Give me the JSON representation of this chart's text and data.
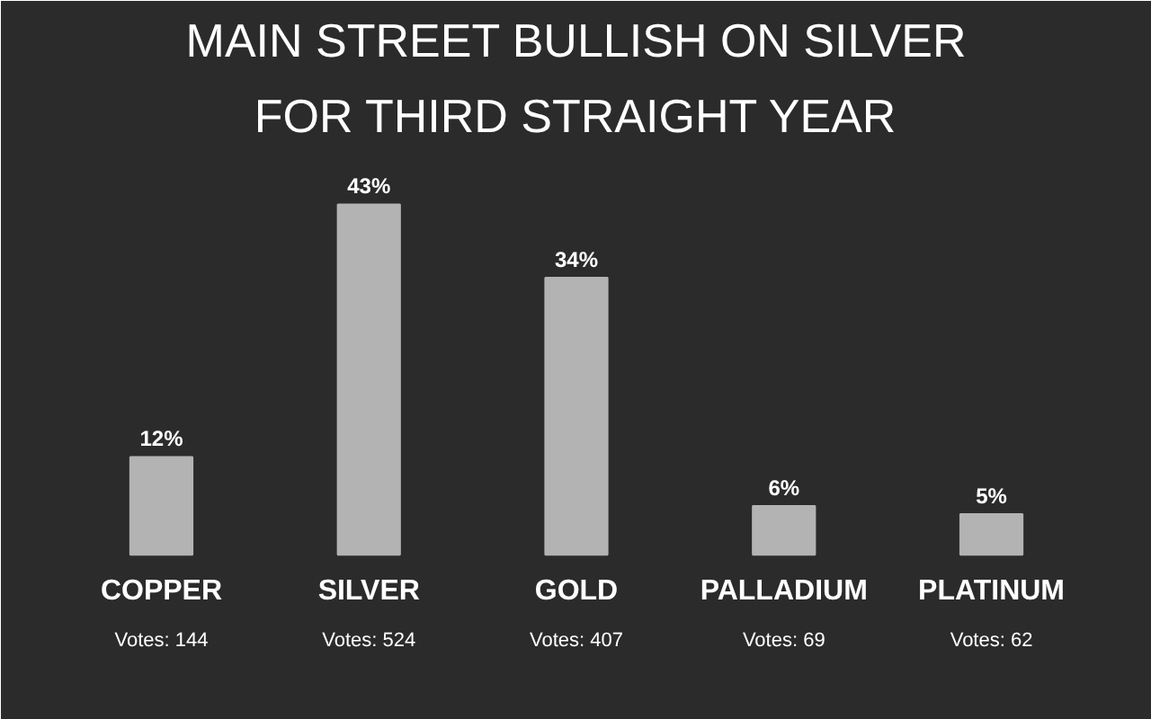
{
  "chart_data": {
    "type": "bar",
    "title": "MAIN STREET BULLISH ON SILVER",
    "subtitle": "FOR THIRD STRAIGHT YEAR",
    "categories": [
      "COPPER",
      "SILVER",
      "GOLD",
      "PALLADIUM",
      "PLATINUM"
    ],
    "values": [
      12,
      43,
      34,
      6,
      5
    ],
    "color": "#b3b3b3",
    "data_labels": true,
    "value_labels": [
      "12%",
      "43%",
      "34%",
      "6%",
      "5%"
    ],
    "grid": false,
    "annotations": [
      "Votes: 144",
      "Votes: 524",
      "Votes: 407",
      "Votes: 69",
      "Votes: 62"
    ]
  }
}
